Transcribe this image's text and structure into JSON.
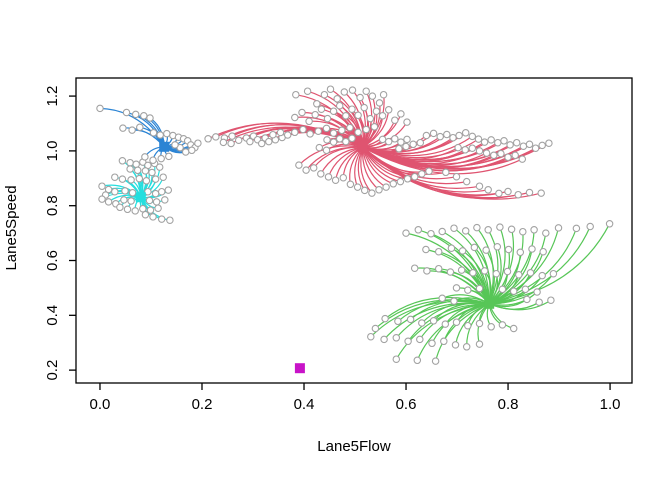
{
  "chart_data": {
    "type": "scatter",
    "xlabel": "Lane5Flow",
    "ylabel": "Lane5Speed",
    "x_ticks": [
      0.0,
      0.2,
      0.4,
      0.6,
      0.8,
      1.0
    ],
    "x_tick_labels": [
      "0.0",
      "0.2",
      "0.4",
      "0.6",
      "0.8",
      "1.0"
    ],
    "y_ticks": [
      0.2,
      0.4,
      0.6,
      0.8,
      1.0,
      1.2
    ],
    "y_tick_labels": [
      "0.2",
      "0.4",
      "0.6",
      "0.8",
      "1.0",
      "1.2"
    ],
    "xlim": [
      -0.047,
      1.043
    ],
    "ylim": [
      0.153,
      1.266
    ],
    "grid": false,
    "legend": false,
    "point_marker": "open-circle",
    "point_color": "#A2A2A2",
    "center_marker": "filled-square",
    "clusters": [
      {
        "name": "cluster-cyan",
        "color": "#25DEDE",
        "center": [
          0.08,
          0.831
        ],
        "points": [
          [
            0.044,
            0.964
          ],
          [
            0.059,
            0.957
          ],
          [
            0.071,
            0.951
          ],
          [
            0.084,
            0.959
          ],
          [
            0.094,
            0.947
          ],
          [
            0.107,
            0.954
          ],
          [
            0.117,
            0.941
          ],
          [
            0.059,
            0.934
          ],
          [
            0.074,
            0.929
          ],
          [
            0.089,
            0.927
          ],
          [
            0.102,
            0.921
          ],
          [
            0.029,
            0.904
          ],
          [
            0.044,
            0.897
          ],
          [
            0.061,
            0.894
          ],
          [
            0.077,
            0.899
          ],
          [
            0.091,
            0.891
          ],
          [
            0.109,
            0.897
          ],
          [
            0.124,
            0.904
          ],
          [
            0.004,
            0.871
          ],
          [
            0.017,
            0.859
          ],
          [
            0.029,
            0.851
          ],
          [
            0.011,
            0.839
          ],
          [
            0.004,
            0.824
          ],
          [
            0.017,
            0.814
          ],
          [
            0.031,
            0.807
          ],
          [
            0.049,
            0.854
          ],
          [
            0.064,
            0.847
          ],
          [
            0.094,
            0.851
          ],
          [
            0.109,
            0.844
          ],
          [
            0.121,
            0.851
          ],
          [
            0.134,
            0.857
          ],
          [
            0.047,
            0.821
          ],
          [
            0.061,
            0.817
          ],
          [
            0.097,
            0.819
          ],
          [
            0.111,
            0.814
          ],
          [
            0.127,
            0.821
          ],
          [
            0.039,
            0.794
          ],
          [
            0.054,
            0.787
          ],
          [
            0.069,
            0.781
          ],
          [
            0.084,
            0.789
          ],
          [
            0.099,
            0.784
          ],
          [
            0.114,
            0.791
          ],
          [
            0.089,
            0.767
          ],
          [
            0.104,
            0.759
          ],
          [
            0.121,
            0.751
          ],
          [
            0.137,
            0.747
          ]
        ]
      },
      {
        "name": "cluster-blue",
        "color": "#2B84D4",
        "center": [
          0.126,
          1.015
        ],
        "points": [
          [
            0.0,
            1.155
          ],
          [
            0.052,
            1.14
          ],
          [
            0.07,
            1.133
          ],
          [
            0.086,
            1.128
          ],
          [
            0.098,
            1.12
          ],
          [
            0.045,
            1.083
          ],
          [
            0.063,
            1.076
          ],
          [
            0.078,
            1.086
          ],
          [
            0.105,
            1.066
          ],
          [
            0.118,
            1.058
          ],
          [
            0.131,
            1.063
          ],
          [
            0.143,
            1.056
          ],
          [
            0.154,
            1.05
          ],
          [
            0.164,
            1.044
          ],
          [
            0.172,
            1.037
          ],
          [
            0.178,
            1.022
          ],
          [
            0.186,
            1.012
          ],
          [
            0.192,
            1.028
          ],
          [
            0.157,
            1.012
          ],
          [
            0.147,
            1.022
          ],
          [
            0.088,
            0.978
          ],
          [
            0.104,
            0.966
          ],
          [
            0.12,
            0.972
          ],
          [
            0.135,
            0.98
          ],
          [
            0.168,
            0.996
          ],
          [
            0.18,
            1.002
          ]
        ]
      },
      {
        "name": "cluster-red",
        "color": "#DF5470",
        "center": [
          0.515,
          1.014
        ],
        "points": [
          [
            0.212,
            1.044
          ],
          [
            0.227,
            1.051
          ],
          [
            0.244,
            1.047
          ],
          [
            0.259,
            1.054
          ],
          [
            0.242,
            1.031
          ],
          [
            0.257,
            1.027
          ],
          [
            0.272,
            1.039
          ],
          [
            0.287,
            1.047
          ],
          [
            0.301,
            1.054
          ],
          [
            0.294,
            1.034
          ],
          [
            0.309,
            1.041
          ],
          [
            0.324,
            1.047
          ],
          [
            0.317,
            1.027
          ],
          [
            0.331,
            1.034
          ],
          [
            0.344,
            1.041
          ],
          [
            0.357,
            1.049
          ],
          [
            0.339,
            1.059
          ],
          [
            0.354,
            1.067
          ],
          [
            0.384,
            1.205
          ],
          [
            0.407,
            1.218
          ],
          [
            0.425,
            1.172
          ],
          [
            0.44,
            1.205
          ],
          [
            0.452,
            1.225
          ],
          [
            0.465,
            1.19
          ],
          [
            0.479,
            1.215
          ],
          [
            0.495,
            1.222
          ],
          [
            0.51,
            1.195
          ],
          [
            0.522,
            1.218
          ],
          [
            0.534,
            1.2
          ],
          [
            0.548,
            1.175
          ],
          [
            0.556,
            1.205
          ],
          [
            0.382,
            1.122
          ],
          [
            0.396,
            1.14
          ],
          [
            0.41,
            1.108
          ],
          [
            0.422,
            1.132
          ],
          [
            0.434,
            1.152
          ],
          [
            0.446,
            1.118
          ],
          [
            0.458,
            1.145
          ],
          [
            0.47,
            1.165
          ],
          [
            0.482,
            1.128
          ],
          [
            0.494,
            1.152
          ],
          [
            0.506,
            1.13
          ],
          [
            0.518,
            1.158
          ],
          [
            0.53,
            1.118
          ],
          [
            0.542,
            1.145
          ],
          [
            0.554,
            1.128
          ],
          [
            0.566,
            1.15
          ],
          [
            0.578,
            1.112
          ],
          [
            0.59,
            1.135
          ],
          [
            0.602,
            1.105
          ],
          [
            0.368,
            1.058
          ],
          [
            0.382,
            1.068
          ],
          [
            0.398,
            1.078
          ],
          [
            0.412,
            1.062
          ],
          [
            0.428,
            1.072
          ],
          [
            0.444,
            1.082
          ],
          [
            0.458,
            1.065
          ],
          [
            0.474,
            1.075
          ],
          [
            0.49,
            1.085
          ],
          [
            0.506,
            1.068
          ],
          [
            0.522,
            1.078
          ],
          [
            0.538,
            1.088
          ],
          [
            0.445,
            1.04
          ],
          [
            0.458,
            1.032
          ],
          [
            0.47,
            1.044
          ],
          [
            0.482,
            1.034
          ],
          [
            0.494,
            1.046
          ],
          [
            0.554,
            1.042
          ],
          [
            0.566,
            1.034
          ],
          [
            0.578,
            1.044
          ],
          [
            0.59,
            1.032
          ],
          [
            0.602,
            1.042
          ],
          [
            0.43,
            1.012
          ],
          [
            0.444,
            1.002
          ],
          [
            0.586,
            1.008
          ],
          [
            0.6,
            1.016
          ],
          [
            0.614,
            1.024
          ],
          [
            0.628,
            1.03
          ],
          [
            0.64,
            1.056
          ],
          [
            0.654,
            1.064
          ],
          [
            0.667,
            1.052
          ],
          [
            0.68,
            1.06
          ],
          [
            0.692,
            1.048
          ],
          [
            0.704,
            1.056
          ],
          [
            0.717,
            1.066
          ],
          [
            0.73,
            1.053
          ],
          [
            0.742,
            1.043
          ],
          [
            0.754,
            1.032
          ],
          [
            0.767,
            1.04
          ],
          [
            0.78,
            1.03
          ],
          [
            0.792,
            1.037
          ],
          [
            0.804,
            1.022
          ],
          [
            0.817,
            1.03
          ],
          [
            0.83,
            1.017
          ],
          [
            0.842,
            1.024
          ],
          [
            0.854,
            1.01
          ],
          [
            0.867,
            1.02
          ],
          [
            0.88,
            1.028
          ],
          [
            0.702,
            1.012
          ],
          [
            0.716,
            1.004
          ],
          [
            0.73,
            1.01
          ],
          [
            0.744,
            1.0
          ],
          [
            0.758,
            0.992
          ],
          [
            0.772,
            0.984
          ],
          [
            0.786,
            0.99
          ],
          [
            0.8,
            0.977
          ],
          [
            0.814,
            0.984
          ],
          [
            0.828,
            0.97
          ],
          [
            0.39,
            0.948
          ],
          [
            0.404,
            0.93
          ],
          [
            0.419,
            0.938
          ],
          [
            0.433,
            0.916
          ],
          [
            0.448,
            0.905
          ],
          [
            0.462,
            0.893
          ],
          [
            0.477,
            0.902
          ],
          [
            0.491,
            0.878
          ],
          [
            0.505,
            0.868
          ],
          [
            0.519,
            0.856
          ],
          [
            0.533,
            0.846
          ],
          [
            0.547,
            0.858
          ],
          [
            0.561,
            0.868
          ],
          [
            0.575,
            0.88
          ],
          [
            0.589,
            0.888
          ],
          [
            0.603,
            0.898
          ],
          [
            0.617,
            0.906
          ],
          [
            0.631,
            0.916
          ],
          [
            0.645,
            0.926
          ],
          [
            0.678,
            0.922
          ],
          [
            0.699,
            0.906
          ],
          [
            0.719,
            0.888
          ],
          [
            0.744,
            0.871
          ],
          [
            0.761,
            0.858
          ],
          [
            0.782,
            0.845
          ],
          [
            0.8,
            0.852
          ],
          [
            0.82,
            0.84
          ],
          [
            0.842,
            0.848
          ],
          [
            0.865,
            0.846
          ]
        ]
      },
      {
        "name": "cluster-green",
        "color": "#57C657",
        "center": [
          0.763,
          0.442
        ],
        "points": [
          [
            0.6,
            0.7
          ],
          [
            0.624,
            0.712
          ],
          [
            0.649,
            0.698
          ],
          [
            0.671,
            0.706
          ],
          [
            0.694,
            0.718
          ],
          [
            0.717,
            0.708
          ],
          [
            0.739,
            0.72
          ],
          [
            0.761,
            0.712
          ],
          [
            0.784,
            0.722
          ],
          [
            0.807,
            0.714
          ],
          [
            0.829,
            0.705
          ],
          [
            0.851,
            0.712
          ],
          [
            0.874,
            0.7
          ],
          [
            0.899,
            0.719
          ],
          [
            0.934,
            0.717
          ],
          [
            0.961,
            0.724
          ],
          [
            0.999,
            0.734
          ],
          [
            0.639,
            0.64
          ],
          [
            0.664,
            0.632
          ],
          [
            0.689,
            0.645
          ],
          [
            0.711,
            0.635
          ],
          [
            0.734,
            0.648
          ],
          [
            0.757,
            0.638
          ],
          [
            0.779,
            0.65
          ],
          [
            0.801,
            0.64
          ],
          [
            0.824,
            0.63
          ],
          [
            0.847,
            0.642
          ],
          [
            0.869,
            0.632
          ],
          [
            0.617,
            0.572
          ],
          [
            0.641,
            0.562
          ],
          [
            0.664,
            0.57
          ],
          [
            0.687,
            0.558
          ],
          [
            0.709,
            0.565
          ],
          [
            0.731,
            0.555
          ],
          [
            0.754,
            0.562
          ],
          [
            0.777,
            0.552
          ],
          [
            0.799,
            0.56
          ],
          [
            0.821,
            0.548
          ],
          [
            0.844,
            0.555
          ],
          [
            0.867,
            0.545
          ],
          [
            0.889,
            0.552
          ],
          [
            0.699,
            0.5
          ],
          [
            0.721,
            0.492
          ],
          [
            0.744,
            0.498
          ],
          [
            0.789,
            0.495
          ],
          [
            0.811,
            0.488
          ],
          [
            0.834,
            0.495
          ],
          [
            0.857,
            0.485
          ],
          [
            0.671,
            0.462
          ],
          [
            0.694,
            0.452
          ],
          [
            0.837,
            0.458
          ],
          [
            0.861,
            0.448
          ],
          [
            0.884,
            0.455
          ],
          [
            0.559,
            0.388
          ],
          [
            0.584,
            0.378
          ],
          [
            0.609,
            0.385
          ],
          [
            0.631,
            0.372
          ],
          [
            0.654,
            0.38
          ],
          [
            0.677,
            0.368
          ],
          [
            0.699,
            0.375
          ],
          [
            0.721,
            0.362
          ],
          [
            0.744,
            0.37
          ],
          [
            0.767,
            0.358
          ],
          [
            0.789,
            0.365
          ],
          [
            0.811,
            0.352
          ],
          [
            0.531,
            0.322
          ],
          [
            0.54,
            0.352
          ],
          [
            0.557,
            0.312
          ],
          [
            0.581,
            0.318
          ],
          [
            0.604,
            0.305
          ],
          [
            0.627,
            0.312
          ],
          [
            0.651,
            0.298
          ],
          [
            0.674,
            0.305
          ],
          [
            0.697,
            0.292
          ],
          [
            0.719,
            0.285
          ],
          [
            0.744,
            0.295
          ],
          [
            0.581,
            0.24
          ],
          [
            0.622,
            0.236
          ],
          [
            0.658,
            0.233
          ]
        ]
      },
      {
        "name": "cluster-magenta",
        "color": "#C813C8",
        "center": [
          0.392,
          0.207
        ],
        "points": []
      }
    ]
  }
}
